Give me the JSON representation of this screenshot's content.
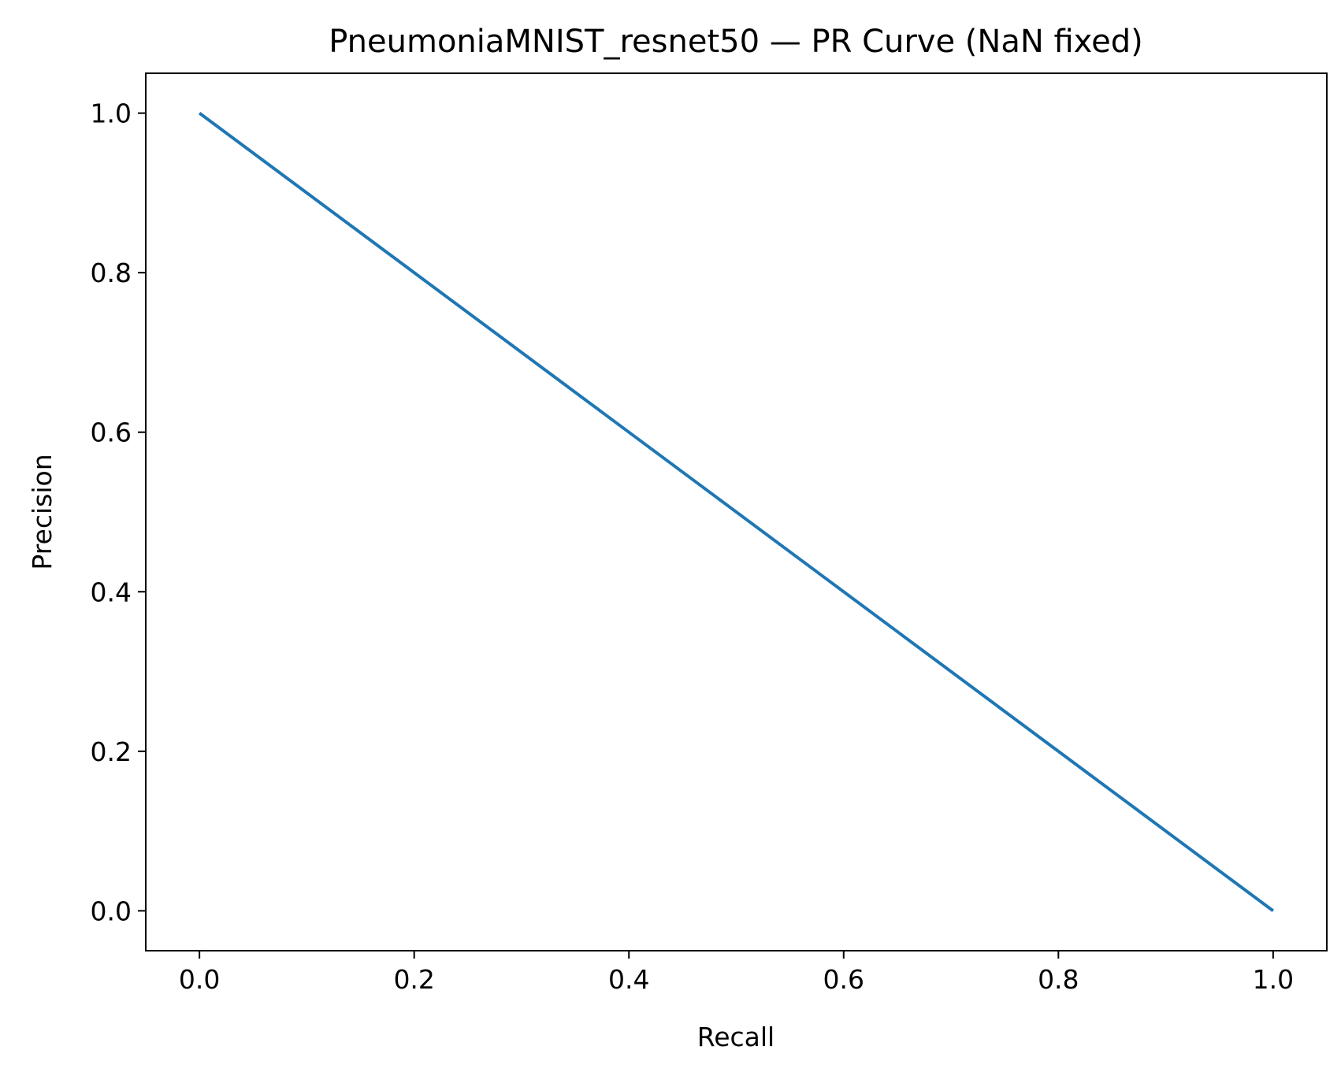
{
  "chart_data": {
    "type": "line",
    "title": "PneumoniaMNIST_resnet50 — PR Curve (NaN fixed)",
    "xlabel": "Recall",
    "ylabel": "Precision",
    "xlim": [
      -0.05,
      1.05
    ],
    "ylim": [
      -0.05,
      1.05
    ],
    "xticks": [
      "0.0",
      "0.2",
      "0.4",
      "0.6",
      "0.8",
      "1.0"
    ],
    "yticks": [
      "0.0",
      "0.2",
      "0.4",
      "0.6",
      "0.8",
      "1.0"
    ],
    "grid": false,
    "legend": "none",
    "series": [
      {
        "color": "#1f77b4",
        "x": [
          0.0,
          1.0
        ],
        "y": [
          1.0,
          0.0
        ]
      }
    ]
  }
}
